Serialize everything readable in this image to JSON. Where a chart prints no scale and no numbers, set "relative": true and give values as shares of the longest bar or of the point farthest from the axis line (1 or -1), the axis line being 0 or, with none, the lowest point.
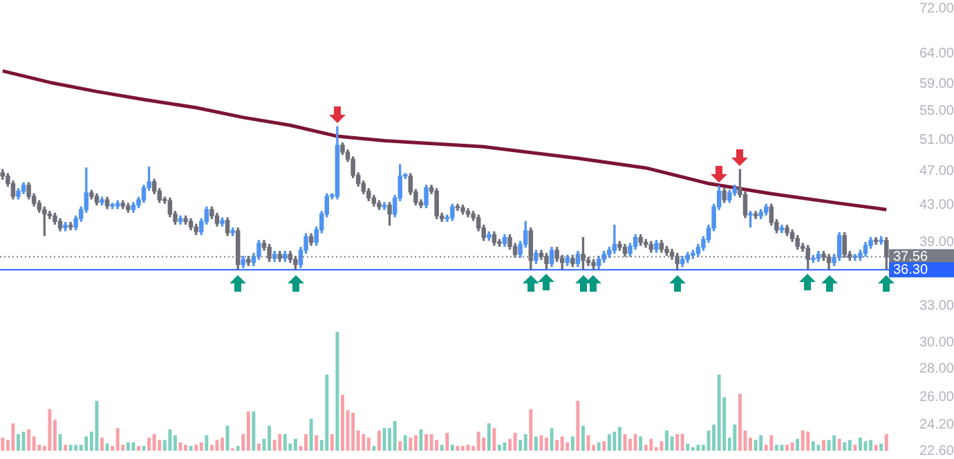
{
  "chart_data": [
    {
      "type": "candlestick",
      "log": "y",
      "ylim": [
        22.6,
        72
      ],
      "tick_labels": "y",
      "grid": false,
      "legend": false,
      "yticks": [
        {
          "value": 22.6,
          "label": "22.60"
        },
        {
          "value": 24.2,
          "label": "24.20"
        },
        {
          "value": 26,
          "label": "26.00"
        },
        {
          "value": 28,
          "label": "28.00"
        },
        {
          "value": 30,
          "label": "30.00"
        },
        {
          "value": 33,
          "label": "33.00"
        },
        {
          "value": 39,
          "label": "39.00"
        },
        {
          "value": 43,
          "label": "43.00"
        },
        {
          "value": 47,
          "label": "47.00"
        },
        {
          "value": 51,
          "label": "51.00"
        },
        {
          "value": 55,
          "label": "55.00"
        },
        {
          "value": 59,
          "label": "59.00"
        },
        {
          "value": 64,
          "label": "64.00"
        },
        {
          "value": 72,
          "label": "72.00"
        }
      ],
      "ref_lines": [
        {
          "axis": "y",
          "value": 37.56,
          "label": "37.56",
          "color": "#787b86",
          "line_style": "dotted"
        },
        {
          "axis": "y",
          "value": 36.3,
          "label": "36.30",
          "color": "#2962ff",
          "line_style": "solid"
        }
      ],
      "categories": [
        null,
        null,
        null,
        null,
        null,
        null,
        null,
        null,
        null,
        null,
        null,
        null,
        null,
        null,
        null,
        null,
        null,
        null,
        null,
        null,
        null,
        null,
        null,
        null,
        null,
        null,
        null,
        null,
        null,
        null,
        null,
        null,
        null,
        null,
        null,
        null,
        null,
        null,
        null,
        null,
        null,
        null,
        null,
        null,
        null,
        null,
        null,
        null,
        null,
        null,
        null,
        null,
        null,
        null,
        null,
        null,
        null,
        null,
        null,
        null,
        null,
        null,
        null,
        null,
        null,
        null,
        null,
        null,
        null,
        null,
        null,
        null,
        null,
        null,
        null,
        null,
        null,
        null,
        null,
        null,
        null,
        null,
        null,
        null,
        null,
        null,
        null,
        null,
        null,
        null,
        null,
        null,
        null,
        null,
        null,
        null,
        null,
        null,
        null,
        null,
        null,
        null,
        null,
        null,
        null,
        null,
        null,
        null,
        null,
        null,
        null,
        null,
        null,
        null,
        null,
        null,
        null,
        null,
        null,
        null,
        null,
        null,
        null,
        null,
        null,
        null,
        null,
        null,
        null,
        null,
        null,
        null,
        null,
        null,
        null,
        null,
        null,
        null,
        null,
        null,
        null,
        null,
        null,
        null,
        null,
        null,
        null,
        null,
        null,
        null,
        null,
        null,
        null,
        null,
        null,
        null,
        null,
        null,
        null,
        null,
        null,
        null,
        null,
        null,
        null,
        null,
        null,
        null,
        null,
        null
      ],
      "ohlc": [
        [
          46.8,
          47.2,
          46.0,
          46.4
        ],
        [
          46.4,
          46.7,
          45.2,
          45.5
        ],
        [
          45.5,
          45.8,
          43.7,
          44.0
        ],
        [
          44.0,
          44.9,
          43.7,
          44.6
        ],
        [
          44.6,
          45.6,
          44.3,
          45.3
        ],
        [
          45.3,
          45.6,
          43.7,
          44.0
        ],
        [
          44.0,
          44.3,
          42.9,
          43.2
        ],
        [
          43.2,
          43.5,
          42.2,
          42.5
        ],
        [
          42.5,
          42.8,
          39.7,
          42.0
        ],
        [
          42.0,
          42.3,
          41.5,
          41.8
        ],
        [
          41.8,
          42.1,
          40.9,
          41.2
        ],
        [
          41.2,
          41.5,
          40.2,
          40.5
        ],
        [
          40.5,
          41.1,
          40.2,
          40.8
        ],
        [
          40.8,
          41.1,
          40.3,
          40.6
        ],
        [
          40.6,
          41.8,
          40.3,
          41.5
        ],
        [
          41.5,
          42.8,
          41.2,
          42.5
        ],
        [
          42.5,
          47.4,
          42.2,
          44.4
        ],
        [
          44.4,
          44.7,
          43.7,
          44.0
        ],
        [
          44.0,
          44.3,
          43.0,
          43.3
        ],
        [
          43.3,
          43.9,
          43.0,
          43.6
        ],
        [
          43.6,
          43.9,
          42.6,
          42.9
        ],
        [
          42.9,
          43.2,
          42.6,
          42.9
        ],
        [
          42.9,
          43.5,
          42.6,
          43.2
        ],
        [
          43.2,
          43.5,
          42.6,
          42.9
        ],
        [
          42.9,
          43.2,
          42.2,
          42.5
        ],
        [
          42.5,
          43.3,
          42.2,
          43.0
        ],
        [
          43.0,
          43.9,
          42.7,
          43.6
        ],
        [
          43.6,
          45.3,
          43.3,
          45.0
        ],
        [
          45.0,
          47.5,
          44.7,
          45.7
        ],
        [
          45.7,
          46.0,
          44.3,
          44.6
        ],
        [
          44.6,
          44.9,
          43.3,
          43.6
        ],
        [
          43.6,
          43.9,
          43.2,
          43.5
        ],
        [
          43.5,
          43.8,
          41.7,
          42.0
        ],
        [
          42.0,
          42.3,
          40.9,
          41.2
        ],
        [
          41.2,
          41.8,
          40.9,
          41.5
        ],
        [
          41.5,
          41.8,
          40.9,
          41.2
        ],
        [
          41.2,
          41.5,
          40.3,
          40.6
        ],
        [
          40.6,
          40.9,
          39.8,
          40.1
        ],
        [
          40.1,
          41.5,
          39.8,
          41.2
        ],
        [
          41.2,
          42.8,
          40.9,
          42.5
        ],
        [
          42.5,
          42.8,
          41.5,
          41.8
        ],
        [
          41.8,
          42.1,
          40.7,
          41.0
        ],
        [
          41.0,
          41.6,
          40.7,
          41.3
        ],
        [
          41.3,
          41.6,
          39.7,
          40.0
        ],
        [
          40.0,
          40.5,
          39.7,
          40.2
        ],
        [
          40.2,
          40.5,
          36.3,
          36.8
        ],
        [
          36.8,
          37.6,
          36.5,
          37.3
        ],
        [
          37.3,
          37.6,
          36.7,
          37.0
        ],
        [
          37.0,
          37.9,
          36.7,
          37.6
        ],
        [
          37.6,
          39.2,
          37.3,
          38.9
        ],
        [
          38.9,
          39.2,
          38.2,
          38.5
        ],
        [
          38.5,
          38.8,
          37.1,
          37.4
        ],
        [
          37.4,
          38.1,
          37.1,
          37.8
        ],
        [
          37.8,
          38.1,
          37.1,
          37.4
        ],
        [
          37.4,
          38.1,
          37.1,
          37.8
        ],
        [
          37.8,
          38.1,
          37.0,
          37.3
        ],
        [
          37.3,
          37.6,
          36.3,
          36.8
        ],
        [
          36.8,
          38.5,
          36.5,
          38.2
        ],
        [
          38.2,
          39.9,
          37.9,
          39.6
        ],
        [
          39.6,
          39.9,
          38.7,
          39.0
        ],
        [
          39.0,
          40.6,
          38.7,
          40.3
        ],
        [
          40.3,
          42.3,
          40.0,
          42.0
        ],
        [
          42.0,
          44.3,
          41.7,
          44.0
        ],
        [
          44.0,
          44.3,
          43.7,
          44.0
        ],
        [
          44.0,
          52.8,
          43.7,
          50.3
        ],
        [
          50.3,
          50.6,
          49.1,
          49.4
        ],
        [
          49.4,
          49.7,
          48.2,
          48.5
        ],
        [
          48.5,
          48.8,
          46.2,
          46.5
        ],
        [
          46.5,
          46.8,
          45.2,
          45.5
        ],
        [
          45.5,
          45.8,
          44.3,
          44.6
        ],
        [
          44.6,
          44.9,
          43.5,
          43.8
        ],
        [
          43.8,
          44.1,
          42.9,
          43.2
        ],
        [
          43.2,
          43.5,
          42.5,
          42.8
        ],
        [
          42.8,
          43.3,
          42.5,
          43.0
        ],
        [
          43.0,
          43.3,
          40.8,
          42.0
        ],
        [
          42.0,
          44.1,
          41.7,
          43.8
        ],
        [
          43.8,
          47.8,
          43.5,
          46.4
        ],
        [
          46.4,
          46.7,
          46.1,
          46.4
        ],
        [
          46.4,
          46.7,
          44.2,
          44.5
        ],
        [
          44.5,
          44.8,
          43.0,
          43.3
        ],
        [
          43.3,
          43.6,
          42.7,
          43.0
        ],
        [
          43.0,
          45.3,
          42.7,
          45.0
        ],
        [
          45.0,
          45.3,
          44.3,
          44.6
        ],
        [
          44.6,
          44.9,
          41.5,
          41.8
        ],
        [
          41.8,
          42.1,
          41.2,
          41.5
        ],
        [
          41.5,
          41.9,
          41.2,
          41.6
        ],
        [
          41.6,
          43.1,
          41.3,
          42.8
        ],
        [
          42.8,
          43.1,
          42.4,
          42.7
        ],
        [
          42.7,
          43.0,
          42.0,
          42.3
        ],
        [
          42.3,
          42.6,
          41.7,
          42.0
        ],
        [
          42.0,
          42.3,
          41.3,
          41.6
        ],
        [
          41.6,
          41.9,
          40.2,
          40.5
        ],
        [
          40.5,
          40.8,
          39.2,
          39.5
        ],
        [
          39.5,
          40.1,
          39.2,
          39.8
        ],
        [
          39.8,
          40.1,
          38.7,
          39.0
        ],
        [
          39.0,
          39.3,
          38.6,
          38.9
        ],
        [
          38.9,
          39.8,
          38.6,
          39.5
        ],
        [
          39.5,
          39.8,
          38.3,
          38.6
        ],
        [
          38.6,
          38.9,
          37.5,
          37.8
        ],
        [
          37.8,
          39.1,
          37.5,
          38.8
        ],
        [
          38.8,
          41.2,
          38.5,
          40.2
        ],
        [
          40.2,
          40.5,
          36.3,
          37.2
        ],
        [
          37.2,
          38.2,
          36.9,
          37.9
        ],
        [
          37.9,
          38.2,
          37.3,
          37.6
        ],
        [
          37.6,
          37.9,
          36.4,
          36.9
        ],
        [
          36.9,
          38.5,
          36.6,
          38.2
        ],
        [
          38.2,
          38.5,
          37.1,
          37.4
        ],
        [
          37.4,
          37.7,
          36.3,
          37.0
        ],
        [
          37.0,
          37.7,
          36.7,
          37.4
        ],
        [
          37.4,
          37.7,
          36.6,
          36.9
        ],
        [
          36.9,
          38.1,
          36.6,
          37.8
        ],
        [
          37.8,
          39.5,
          36.3,
          37.2
        ],
        [
          37.2,
          37.5,
          36.7,
          37.0
        ],
        [
          37.0,
          37.3,
          36.3,
          36.7
        ],
        [
          36.7,
          37.6,
          36.4,
          37.3
        ],
        [
          37.3,
          38.1,
          37.0,
          37.8
        ],
        [
          37.8,
          38.5,
          37.5,
          38.2
        ],
        [
          38.2,
          40.8,
          37.9,
          38.8
        ],
        [
          38.8,
          39.1,
          38.2,
          38.5
        ],
        [
          38.5,
          38.8,
          37.6,
          37.9
        ],
        [
          37.9,
          38.9,
          37.6,
          38.6
        ],
        [
          38.6,
          39.8,
          38.3,
          39.5
        ],
        [
          39.5,
          39.8,
          38.7,
          39.0
        ],
        [
          39.0,
          39.3,
          38.5,
          38.8
        ],
        [
          38.8,
          39.1,
          38.0,
          38.3
        ],
        [
          38.3,
          39.2,
          38.0,
          38.9
        ],
        [
          38.9,
          39.2,
          38.0,
          38.3
        ],
        [
          38.3,
          38.6,
          37.7,
          38.0
        ],
        [
          38.0,
          38.3,
          37.3,
          37.6
        ],
        [
          37.6,
          37.9,
          36.3,
          36.9
        ],
        [
          36.9,
          37.6,
          36.6,
          37.3
        ],
        [
          37.3,
          38.0,
          37.0,
          37.7
        ],
        [
          37.7,
          38.2,
          37.4,
          37.9
        ],
        [
          37.9,
          38.8,
          37.6,
          38.5
        ],
        [
          38.5,
          39.6,
          38.2,
          39.3
        ],
        [
          39.3,
          40.8,
          39.0,
          40.5
        ],
        [
          40.5,
          43.1,
          40.2,
          42.8
        ],
        [
          42.8,
          45.2,
          42.5,
          44.6
        ],
        [
          44.6,
          44.9,
          43.3,
          43.6
        ],
        [
          43.6,
          44.7,
          43.3,
          44.4
        ],
        [
          44.4,
          45.3,
          44.1,
          45.0
        ],
        [
          45.0,
          47.2,
          43.9,
          44.2
        ],
        [
          44.2,
          44.5,
          41.6,
          41.9
        ],
        [
          41.9,
          42.3,
          40.6,
          42.0
        ],
        [
          42.0,
          42.3,
          41.5,
          41.8
        ],
        [
          41.8,
          42.5,
          41.5,
          42.2
        ],
        [
          42.2,
          43.1,
          41.9,
          42.8
        ],
        [
          42.8,
          43.1,
          40.8,
          41.1
        ],
        [
          41.1,
          41.4,
          40.0,
          40.3
        ],
        [
          40.3,
          40.8,
          40.0,
          40.5
        ],
        [
          40.5,
          40.8,
          39.7,
          40.0
        ],
        [
          40.0,
          40.3,
          39.1,
          39.4
        ],
        [
          39.4,
          39.7,
          38.3,
          38.6
        ],
        [
          38.6,
          38.9,
          38.1,
          38.4
        ],
        [
          38.4,
          38.7,
          36.4,
          37.3
        ],
        [
          37.3,
          37.7,
          37.0,
          37.4
        ],
        [
          37.4,
          38.1,
          37.1,
          37.8
        ],
        [
          37.8,
          38.1,
          37.2,
          37.5
        ],
        [
          37.5,
          37.8,
          36.3,
          37.0
        ],
        [
          37.0,
          37.8,
          36.7,
          37.5
        ],
        [
          37.5,
          40.0,
          37.2,
          39.7
        ],
        [
          39.7,
          40.0,
          37.5,
          37.8
        ],
        [
          37.8,
          38.1,
          37.2,
          37.5
        ],
        [
          37.5,
          37.8,
          37.2,
          37.5
        ],
        [
          37.5,
          38.2,
          37.2,
          37.9
        ],
        [
          37.9,
          39.0,
          37.6,
          38.7
        ],
        [
          38.7,
          39.5,
          38.4,
          39.2
        ],
        [
          39.2,
          39.5,
          38.8,
          39.1
        ],
        [
          39.1,
          39.6,
          38.8,
          39.2
        ],
        [
          39.2,
          39.5,
          36.3,
          37.6
        ]
      ],
      "series": [
        {
          "type": "line",
          "color": "#7b1533",
          "values": [
            61.1,
            null,
            null,
            null,
            null,
            null,
            null,
            null,
            null,
            59.3,
            null,
            null,
            null,
            null,
            null,
            null,
            null,
            null,
            57.9,
            null,
            null,
            null,
            null,
            null,
            null,
            null,
            null,
            56.7,
            null,
            null,
            null,
            null,
            null,
            null,
            null,
            null,
            null,
            55.5,
            null,
            null,
            null,
            null,
            null,
            null,
            null,
            null,
            54.1,
            null,
            null,
            null,
            null,
            null,
            null,
            null,
            null,
            53.0,
            null,
            null,
            null,
            null,
            null,
            null,
            null,
            null,
            51.5,
            null,
            null,
            null,
            null,
            null,
            null,
            null,
            null,
            50.9,
            null,
            null,
            null,
            null,
            null,
            null,
            null,
            null,
            null,
            null,
            null,
            null,
            null,
            null,
            null,
            null,
            null,
            null,
            50.1,
            null,
            null,
            null,
            null,
            null,
            null,
            null,
            null,
            null,
            null,
            null,
            null,
            null,
            null,
            null,
            null,
            null,
            48.6,
            null,
            null,
            null,
            null,
            null,
            null,
            null,
            null,
            null,
            null,
            null,
            null,
            47.4,
            null,
            null,
            null,
            null,
            null,
            null,
            null,
            null,
            null,
            null,
            null,
            45.5,
            null,
            null,
            null,
            null,
            null,
            null,
            null,
            null,
            null,
            null,
            null,
            44.3,
            null,
            null,
            null,
            null,
            null,
            null,
            null,
            null,
            null,
            null,
            null,
            null,
            43.2,
            null,
            null,
            null,
            null,
            null,
            null,
            null,
            null,
            42.5
          ]
        }
      ]
    },
    {
      "type": "bar",
      "relative": true,
      "tick_labels": false,
      "grid": false,
      "legend": false,
      "categories": [
        null,
        null,
        null,
        null,
        null,
        null,
        null,
        null,
        null,
        null,
        null,
        null,
        null,
        null,
        null,
        null,
        null,
        null,
        null,
        null,
        null,
        null,
        null,
        null,
        null,
        null,
        null,
        null,
        null,
        null,
        null,
        null,
        null,
        null,
        null,
        null,
        null,
        null,
        null,
        null,
        null,
        null,
        null,
        null,
        null,
        null,
        null,
        null,
        null,
        null,
        null,
        null,
        null,
        null,
        null,
        null,
        null,
        null,
        null,
        null,
        null,
        null,
        null,
        null,
        null,
        null,
        null,
        null,
        null,
        null,
        null,
        null,
        null,
        null,
        null,
        null,
        null,
        null,
        null,
        null,
        null,
        null,
        null,
        null,
        null,
        null,
        null,
        null,
        null,
        null,
        null,
        null,
        null,
        null,
        null,
        null,
        null,
        null,
        null,
        null,
        null,
        null,
        null,
        null,
        null,
        null,
        null,
        null,
        null,
        null,
        null,
        null,
        null,
        null,
        null,
        null,
        null,
        null,
        null,
        null,
        null,
        null,
        null,
        null,
        null,
        null,
        null,
        null,
        null,
        null,
        null,
        null,
        null,
        null,
        null,
        null,
        null,
        null,
        null,
        null,
        null,
        null,
        null,
        null,
        null,
        null,
        null,
        null,
        null,
        null,
        null,
        null,
        null,
        null,
        null,
        null,
        null,
        null,
        null,
        null,
        null,
        null,
        null,
        null,
        null,
        null,
        null,
        null,
        null,
        null
      ],
      "values": [
        0.11,
        0.09,
        0.23,
        0.14,
        0.16,
        0.18,
        0.12,
        0.05,
        0.04,
        0.35,
        0.26,
        0.14,
        0.05,
        0.05,
        0.05,
        0.05,
        0.12,
        0.16,
        0.42,
        0.11,
        0.06,
        0.04,
        0.19,
        0.05,
        0.07,
        0.07,
        0.04,
        0.04,
        0.11,
        0.14,
        0.09,
        0.09,
        0.18,
        0.13,
        0.07,
        0.05,
        0.04,
        0.05,
        0.07,
        0.13,
        0.05,
        0.09,
        0.11,
        0.21,
        0.02,
        0.04,
        0.14,
        0.33,
        0.33,
        0.06,
        0.1,
        0.21,
        0.09,
        0.14,
        0.14,
        0.06,
        0.1,
        0.04,
        0.14,
        0.27,
        0.13,
        0.09,
        0.64,
        0.14,
        1,
        0.47,
        0.34,
        0.32,
        0.17,
        0.14,
        0.11,
        0.04,
        0.17,
        0.19,
        0.19,
        0.25,
        0.08,
        0.13,
        0.11,
        0.13,
        0.18,
        0.14,
        0.14,
        0.09,
        0.05,
        0.15,
        0.05,
        0.04,
        0.04,
        0.05,
        0.04,
        0.16,
        0.11,
        0.23,
        0.19,
        0.05,
        0.07,
        0.1,
        0.15,
        0.09,
        0.14,
        0.35,
        0.12,
        0.13,
        0.11,
        0.19,
        0.09,
        0.12,
        0.07,
        0.12,
        0.42,
        0.21,
        0.13,
        0.05,
        0.07,
        0.08,
        0.14,
        0.16,
        0.2,
        0.14,
        0.1,
        0.14,
        0.12,
        0.05,
        0.1,
        0.03,
        0.08,
        0.17,
        0.12,
        0.14,
        0.14,
        0.06,
        0.03,
        0.05,
        0.05,
        0.17,
        0.22,
        0.64,
        0.45,
        0.11,
        0.22,
        0.48,
        0.17,
        0.11,
        0.09,
        0.13,
        0.05,
        0.13,
        0.05,
        0.05,
        0.05,
        0.07,
        0.1,
        0.17,
        0.16,
        0.08,
        0.05,
        0.09,
        0.09,
        0.13,
        0.1,
        0.07,
        0.09,
        0.05,
        0.11,
        0.08,
        0.09,
        0.05,
        0.06,
        0.14
      ],
      "colors": [
        "#f7a0a8",
        "#f7a0a8",
        "#f7a0a8",
        "#7fcfbf",
        "#7fcfbf",
        "#f7a0a8",
        "#f7a0a8",
        "#f7a0a8",
        "#f7a0a8",
        "#f7a0a8",
        "#f7a0a8",
        "#7fcfbf",
        "#f7a0a8",
        "#7fcfbf",
        "#7fcfbf",
        "#7fcfbf",
        "#7fcfbf",
        "#7fcfbf",
        "#7fcfbf",
        "#f7a0a8",
        "#7fcfbf",
        "#f7a0a8",
        "#f7a0a8",
        "#f7a0a8",
        "#7fcfbf",
        "#7fcfbf",
        "#f7a0a8",
        "#7fcfbf",
        "#f7a0a8",
        "#f7a0a8",
        "#f7a0a8",
        "#7fcfbf",
        "#7fcfbf",
        "#7fcfbf",
        "#f7a0a8",
        "#f7a0a8",
        "#7fcfbf",
        "#f7a0a8",
        "#f7a0a8",
        "#7fcfbf",
        "#f7a0a8",
        "#f7a0a8",
        "#f7a0a8",
        "#7fcfbf",
        "#f7a0a8",
        "#7fcfbf",
        "#f7a0a8",
        "#f7a0a8",
        "#7fcfbf",
        "#f7a0a8",
        "#7fcfbf",
        "#7fcfbf",
        "#f7a0a8",
        "#f7a0a8",
        "#7fcfbf",
        "#7fcfbf",
        "#7fcfbf",
        "#f7a0a8",
        "#f7a0a8",
        "#7fcfbf",
        "#f7a0a8",
        "#7fcfbf",
        "#7fcfbf",
        "#f7a0a8",
        "#7fcfbf",
        "#f7a0a8",
        "#f7a0a8",
        "#f7a0a8",
        "#f7a0a8",
        "#f7a0a8",
        "#f7a0a8",
        "#7fcfbf",
        "#f7a0a8",
        "#7fcfbf",
        "#7fcfbf",
        "#7fcfbf",
        "#f7a0a8",
        "#7fcfbf",
        "#f7a0a8",
        "#f7a0a8",
        "#7fcfbf",
        "#f7a0a8",
        "#f7a0a8",
        "#f7a0a8",
        "#7fcfbf",
        "#f7a0a8",
        "#7fcfbf",
        "#f7a0a8",
        "#f7a0a8",
        "#f7a0a8",
        "#f7a0a8",
        "#f7a0a8",
        "#f7a0a8",
        "#7fcfbf",
        "#f7a0a8",
        "#7fcfbf",
        "#7fcfbf",
        "#f7a0a8",
        "#f7a0a8",
        "#7fcfbf",
        "#7fcfbf",
        "#f7a0a8",
        "#7fcfbf",
        "#f7a0a8",
        "#f7a0a8",
        "#7fcfbf",
        "#f7a0a8",
        "#f7a0a8",
        "#f7a0a8",
        "#7fcfbf",
        "#f7a0a8",
        "#7fcfbf",
        "#f7a0a8",
        "#f7a0a8",
        "#7fcfbf",
        "#f7a0a8",
        "#7fcfbf",
        "#7fcfbf",
        "#7fcfbf",
        "#f7a0a8",
        "#f7a0a8",
        "#f7a0a8",
        "#7fcfbf",
        "#f7a0a8",
        "#f7a0a8",
        "#f7a0a8",
        "#f7a0a8",
        "#7fcfbf",
        "#7fcfbf",
        "#f7a0a8",
        "#f7a0a8",
        "#7fcfbf",
        "#7fcfbf",
        "#7fcfbf",
        "#7fcfbf",
        "#7fcfbf",
        "#7fcfbf",
        "#7fcfbf",
        "#7fcfbf",
        "#7fcfbf",
        "#7fcfbf",
        "#f7a0a8",
        "#f7a0a8",
        "#f7a0a8",
        "#7fcfbf",
        "#7fcfbf",
        "#f7a0a8",
        "#f7a0a8",
        "#7fcfbf",
        "#7fcfbf",
        "#f7a0a8",
        "#f7a0a8",
        "#7fcfbf",
        "#f7a0a8",
        "#f7a0a8",
        "#7fcfbf",
        "#7fcfbf",
        "#f7a0a8",
        "#7fcfbf",
        "#7fcfbf",
        "#f7a0a8",
        "#7fcfbf",
        "#7fcfbf",
        "#f7a0a8",
        "#7fcfbf",
        "#7fcfbf",
        "#7fcfbf",
        "#f7a0a8",
        "#7fcfbf",
        "#f7a0a8"
      ]
    }
  ]
}
